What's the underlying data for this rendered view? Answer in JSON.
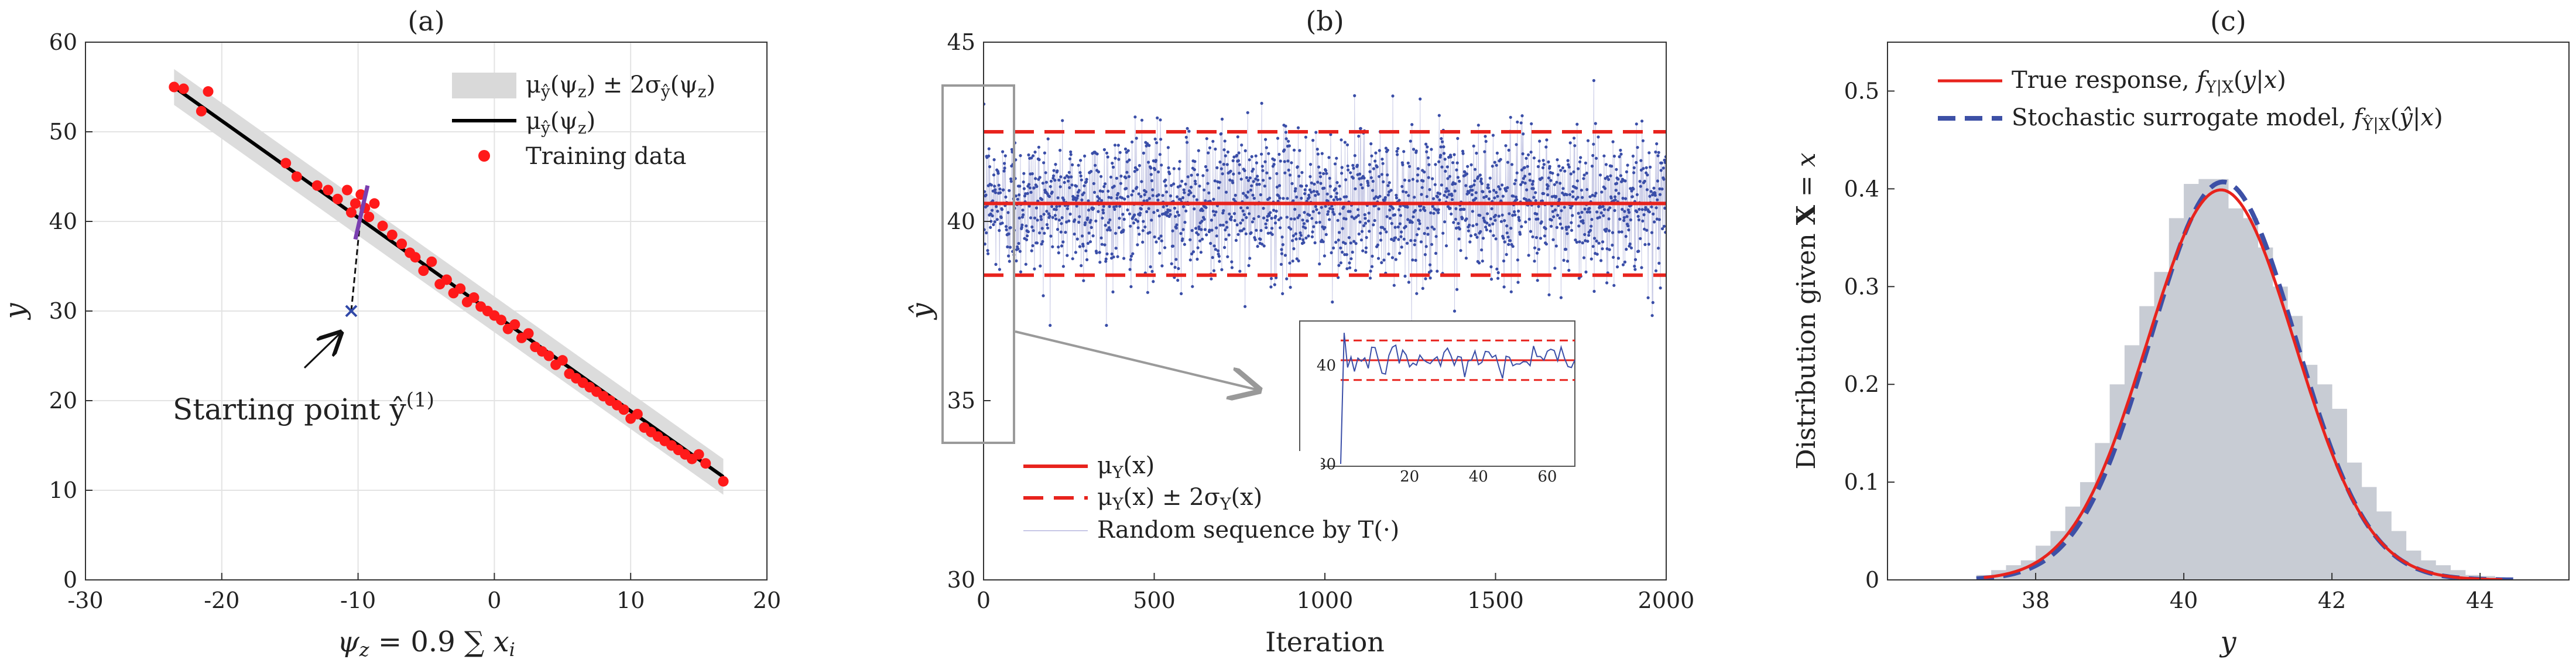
{
  "chart_data": [
    {
      "panel": "(a)",
      "type": "scatter",
      "xlabel": "ψz = 0.9 ∑ xi",
      "ylabel": "y",
      "xlim": [
        -30,
        20
      ],
      "ylim": [
        0,
        60
      ],
      "xticks": [
        -30,
        -20,
        -10,
        0,
        10,
        20
      ],
      "yticks": [
        0,
        10,
        20,
        30,
        40,
        50,
        60
      ],
      "grid": true,
      "legend_position": "top-right",
      "legend": [
        "μŷ(ψz) ± 2σŷ(ψz)",
        "μŷ(ψz)",
        "Training data"
      ],
      "mean_line": {
        "x": [
          -23.5,
          16.8
        ],
        "y": [
          55,
          11.5
        ]
      },
      "band_halfwidth": 2,
      "training_data": {
        "x": [
          -23.5,
          -22.8,
          -21.5,
          -21.0,
          -15.3,
          -14.5,
          -13.0,
          -12.2,
          -11.5,
          -10.8,
          -10.5,
          -10.2,
          -9.8,
          -9.5,
          -9.2,
          -8.8,
          -8.2,
          -7.5,
          -6.8,
          -6.2,
          -5.8,
          -5.2,
          -4.6,
          -4.0,
          -3.5,
          -3.0,
          -2.5,
          -2.0,
          -1.5,
          -1.0,
          -0.5,
          0.0,
          0.5,
          1.0,
          1.5,
          2.0,
          2.5,
          3.0,
          3.5,
          4.0,
          4.5,
          5.0,
          5.5,
          6.0,
          6.5,
          7.0,
          7.5,
          8.0,
          8.5,
          9.0,
          9.5,
          10.0,
          10.5,
          11.0,
          11.5,
          12.0,
          12.5,
          13.0,
          13.5,
          14.0,
          14.5,
          15.0,
          15.5,
          16.8
        ],
        "y": [
          55.0,
          54.8,
          52.3,
          54.5,
          46.5,
          45.0,
          44.0,
          43.5,
          42.5,
          43.5,
          41.0,
          42.0,
          43.0,
          41.5,
          40.5,
          42.0,
          39.5,
          38.5,
          37.5,
          36.5,
          36.0,
          34.5,
          35.5,
          33.0,
          33.5,
          32.0,
          32.5,
          31.0,
          31.5,
          30.5,
          30.0,
          29.5,
          29.0,
          28.0,
          28.5,
          27.0,
          27.5,
          26.0,
          25.5,
          25.0,
          24.0,
          24.5,
          23.0,
          22.5,
          22.0,
          21.5,
          21.0,
          20.5,
          20.0,
          19.5,
          19.0,
          18.0,
          18.5,
          17.0,
          16.5,
          16.0,
          15.5,
          15.0,
          14.5,
          14.0,
          13.5,
          14.0,
          13.0,
          11.0
        ]
      },
      "starting_point": {
        "x": -10.5,
        "y": 30
      },
      "arrow_annotation": "Starting point ŷ(1)"
    },
    {
      "panel": "(b)",
      "type": "line",
      "xlabel": "Iteration",
      "ylabel": "ŷ",
      "xlim": [
        0,
        2000
      ],
      "ylim": [
        30,
        45
      ],
      "xticks": [
        0,
        500,
        1000,
        1500,
        2000
      ],
      "yticks": [
        30,
        35,
        40,
        45
      ],
      "legend_position": "bottom-left",
      "legend": [
        "μY(x)",
        "μY(x) ± 2σY(x)",
        "Random sequence by T(·)"
      ],
      "mean": 40.5,
      "band": [
        38.5,
        42.5
      ],
      "sequence_std": 1.0,
      "n_iterations": 2000,
      "inset": {
        "xlim": [
          0,
          68
        ],
        "ylim": [
          30,
          44
        ],
        "xticks": [
          20,
          40,
          60
        ],
        "yticks": [
          30,
          40
        ]
      }
    },
    {
      "panel": "(c)",
      "type": "area",
      "xlabel": "y",
      "ylabel": "Distribution given X = x",
      "xlim": [
        36.0,
        45.2
      ],
      "ylim": [
        0,
        0.55
      ],
      "xticks": [
        38,
        40,
        42,
        44
      ],
      "yticks": [
        0,
        0.1,
        0.2,
        0.3,
        0.4,
        0.5
      ],
      "legend_position": "top-left",
      "legend": [
        "True response, fY|X(y|x)",
        "Stochastic surrogate model, fŶ|X(ŷ|x)"
      ],
      "true_response": {
        "mean": 40.5,
        "std": 1.0
      },
      "histogram_bins": [
        37.2,
        37.4,
        37.6,
        37.8,
        38.0,
        38.2,
        38.4,
        38.6,
        38.8,
        39.0,
        39.2,
        39.4,
        39.6,
        39.8,
        40.0,
        40.2,
        40.4,
        40.6,
        40.8,
        41.0,
        41.2,
        41.4,
        41.6,
        41.8,
        42.0,
        42.2,
        42.4,
        42.6,
        42.8,
        43.0,
        43.2,
        43.4,
        43.6,
        43.8,
        44.0,
        44.2
      ],
      "histogram_values": [
        0.005,
        0.01,
        0.015,
        0.02,
        0.035,
        0.05,
        0.075,
        0.1,
        0.14,
        0.2,
        0.24,
        0.28,
        0.315,
        0.37,
        0.405,
        0.41,
        0.41,
        0.38,
        0.37,
        0.34,
        0.3,
        0.27,
        0.22,
        0.2,
        0.175,
        0.12,
        0.095,
        0.07,
        0.05,
        0.03,
        0.02,
        0.015,
        0.01,
        0.005,
        0.004,
        0.002
      ]
    }
  ]
}
